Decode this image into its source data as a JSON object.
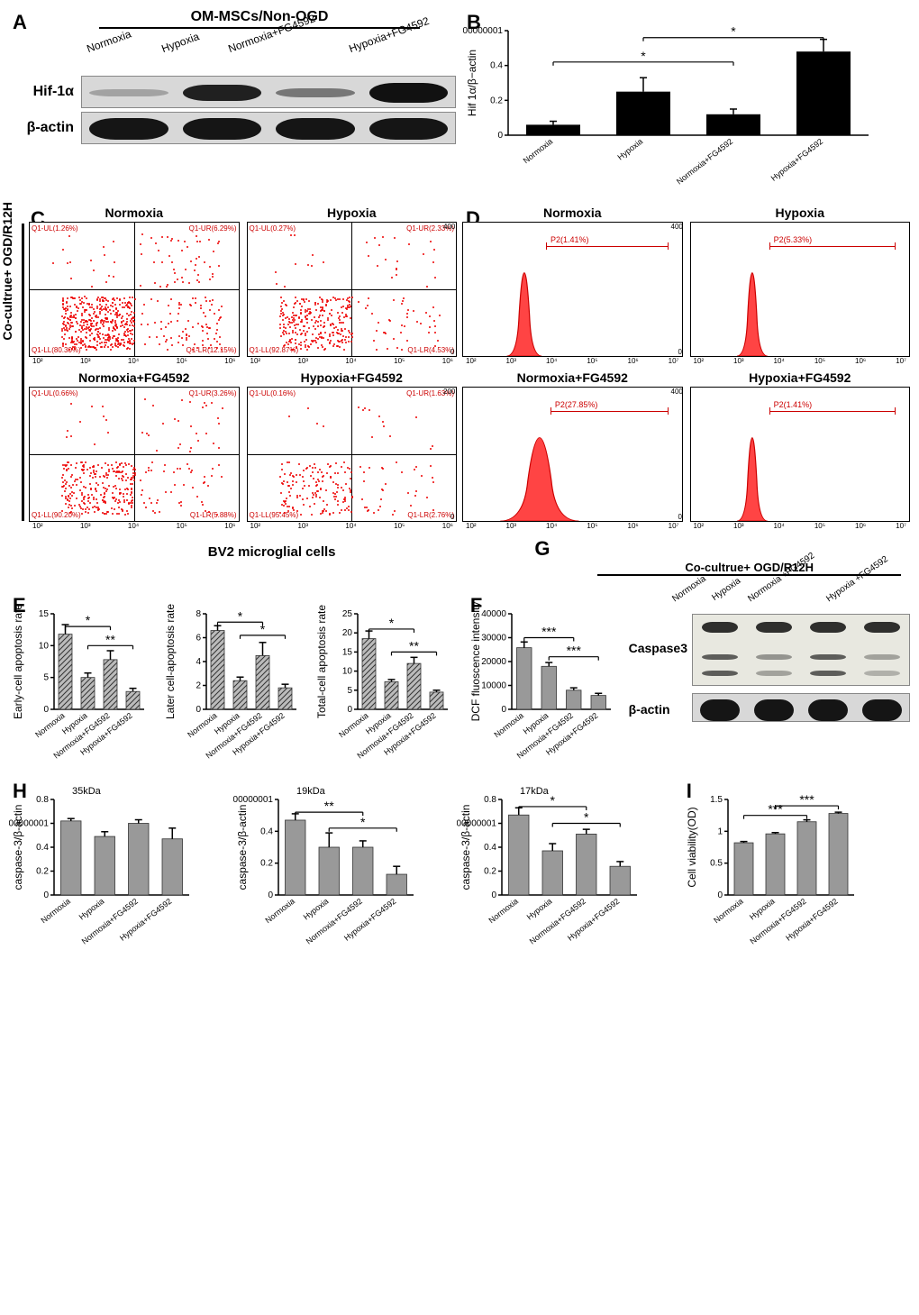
{
  "panelA": {
    "header": "OM-MSCs/Non-OGD",
    "conditions": [
      "Normoxia",
      "Hypoxia",
      "Normoxia+FG4592",
      "Hypoxia+FG4592"
    ],
    "rows": [
      "Hif-1α",
      "β-actin"
    ]
  },
  "panelB": {
    "ylabel": "Hif 1α/β−actin",
    "ylim": [
      0,
      0.6
    ],
    "ytick_step": 0.2,
    "categories": [
      "Normoxia",
      "Hypoxia",
      "Normoxia+FG4592",
      "Hypoxia+FG4592"
    ],
    "values": [
      0.06,
      0.25,
      0.12,
      0.48
    ],
    "errors": [
      0.02,
      0.08,
      0.03,
      0.07
    ],
    "bar_color": "#000000",
    "sig": [
      {
        "from": 0,
        "to": 2,
        "y": 0.42,
        "label": "*"
      },
      {
        "from": 1,
        "to": 3,
        "y": 0.56,
        "label": "*"
      }
    ]
  },
  "panelC": {
    "side_label": "Co-cultrue+ OGD/R12H",
    "plots": [
      {
        "title": "Normoxia",
        "UL": "Q1-UL(1.26%)",
        "UR": "Q1-UR(6.29%)",
        "LL": "Q1-LL(80.30%)",
        "LR": "Q1-LR(12.15%)"
      },
      {
        "title": "Hypoxia",
        "UL": "Q1-UL(0.27%)",
        "UR": "Q1-UR(2.33%)",
        "LL": "Q1-LL(92.87%)",
        "LR": "Q1-LR(4.53%)"
      },
      {
        "title": "Normoxia+FG4592",
        "UL": "Q1-UL(0.66%)",
        "UR": "Q1-UR(3.26%)",
        "LL": "Q1-LL(90.20%)",
        "LR": "Q1-LR(5.88%)"
      },
      {
        "title": "Hypoxia+FG4592",
        "UL": "Q1-UL(0.16%)",
        "UR": "Q1-UR(1.63%)",
        "LL": "Q1-LL(95.45%)",
        "LR": "Q1-LR(2.76%)"
      }
    ],
    "xticks": [
      "10²",
      "10³",
      "10⁴",
      "10⁵",
      "10⁶"
    ],
    "yticks": [
      "10²",
      "10³",
      "10⁴",
      "10⁵",
      "10⁶"
    ]
  },
  "panelD": {
    "plots": [
      {
        "title": "Normoxia",
        "p2": "P2(1.41%)",
        "peak_x": 0.28,
        "width": 0.08,
        "ymax": 400,
        "p2_start": 0.38
      },
      {
        "title": "Hypoxia",
        "p2": "P2(5.33%)",
        "peak_x": 0.28,
        "width": 0.07,
        "ymax": 400,
        "p2_start": 0.36
      },
      {
        "title": "Normoxia+FG4592",
        "p2": "P2(27.85%)",
        "peak_x": 0.35,
        "width": 0.18,
        "ymax": 200,
        "p2_start": 0.4
      },
      {
        "title": "Hypoxia+FG4592",
        "p2": "P2(1.41%)",
        "peak_x": 0.28,
        "width": 0.07,
        "ymax": 400,
        "p2_start": 0.36
      }
    ],
    "xticks": [
      "10²",
      "10³",
      "10⁴",
      "10⁵",
      "10⁶",
      "10⁷"
    ],
    "hist_color": "#ff4040"
  },
  "section_bv2": "BV2 microglial cells",
  "panelE": {
    "charts": [
      {
        "ylabel": "Early-cell apoptosis rate",
        "ylim": [
          0,
          15
        ],
        "ystep": 5,
        "values": [
          11.8,
          5.0,
          7.8,
          2.8
        ],
        "errors": [
          1.5,
          0.7,
          1.4,
          0.5
        ],
        "sig": [
          {
            "from": 0,
            "to": 2,
            "y": 13,
            "label": "*"
          },
          {
            "from": 1,
            "to": 3,
            "y": 10,
            "label": "**"
          }
        ]
      },
      {
        "ylabel": "Later cell-apoptosis rate",
        "ylim": [
          0,
          8
        ],
        "ystep": 2,
        "values": [
          6.6,
          2.4,
          4.5,
          1.8
        ],
        "errors": [
          0.4,
          0.3,
          1.1,
          0.3
        ],
        "sig": [
          {
            "from": 0,
            "to": 2,
            "y": 7.3,
            "label": "*"
          },
          {
            "from": 1,
            "to": 3,
            "y": 6.2,
            "label": "*"
          }
        ]
      },
      {
        "ylabel": "Total-cell apoptosis rate",
        "ylim": [
          0,
          25
        ],
        "ystep": 5,
        "values": [
          18.5,
          7.2,
          12.0,
          4.5
        ],
        "errors": [
          2.0,
          0.6,
          1.6,
          0.5
        ],
        "sig": [
          {
            "from": 0,
            "to": 2,
            "y": 21,
            "label": "*"
          },
          {
            "from": 1,
            "to": 3,
            "y": 15,
            "label": "**"
          }
        ]
      }
    ],
    "categories": [
      "Normoxia",
      "Hypoxia",
      "Normoxia+FG4592",
      "Hypoxia+FG4592"
    ],
    "bar_pattern": "hatch"
  },
  "panelF": {
    "ylabel": "DCF fluoscence intensity",
    "ylim": [
      0,
      40000
    ],
    "ystep": 10000,
    "categories": [
      "Normoxia",
      "Hypoxia",
      "Normoxia+FG4592",
      "Hypoxia+FG4592"
    ],
    "values": [
      25800,
      18000,
      8000,
      5800
    ],
    "errors": [
      2400,
      1600,
      1000,
      900
    ],
    "sig": [
      {
        "from": 0,
        "to": 2,
        "y": 30000,
        "label": "***"
      },
      {
        "from": 1,
        "to": 3,
        "y": 22000,
        "label": "***"
      }
    ],
    "bar_color": "#999999"
  },
  "panelG": {
    "header": "Co-cultrue+ OGD/R12H",
    "conditions": [
      "Normoxia",
      "Hypoxia",
      "Normoxia\n+FG4592",
      "Hypoxia\n+FG4592"
    ],
    "rows": [
      "Caspase3",
      "β-actin"
    ]
  },
  "panelH": {
    "charts": [
      {
        "title": "35kDa",
        "ylabel": "caspase-3/β-actin",
        "ylim": [
          0,
          0.8
        ],
        "ystep": 0.2,
        "values": [
          0.62,
          0.49,
          0.6,
          0.47
        ],
        "errors": [
          0.02,
          0.04,
          0.03,
          0.09
        ],
        "sig": []
      },
      {
        "title": "19kDa",
        "ylabel": "caspase-3/β-actin",
        "ylim": [
          0,
          0.6
        ],
        "ystep": 0.2,
        "values": [
          0.47,
          0.3,
          0.3,
          0.13
        ],
        "errors": [
          0.04,
          0.09,
          0.04,
          0.05
        ],
        "sig": [
          {
            "from": 0,
            "to": 2,
            "y": 0.52,
            "label": "**"
          },
          {
            "from": 1,
            "to": 3,
            "y": 0.42,
            "label": "*"
          }
        ]
      },
      {
        "title": "17kDa",
        "ylabel": "caspase-3/β-actin",
        "ylim": [
          0,
          0.8
        ],
        "ystep": 0.2,
        "values": [
          0.67,
          0.37,
          0.51,
          0.24
        ],
        "errors": [
          0.06,
          0.06,
          0.04,
          0.04
        ],
        "sig": [
          {
            "from": 0,
            "to": 2,
            "y": 0.74,
            "label": "*"
          },
          {
            "from": 1,
            "to": 3,
            "y": 0.6,
            "label": "*"
          }
        ]
      }
    ],
    "categories": [
      "Normoxia",
      "Hypoxia",
      "Normoxia+FG4592",
      "Hypoxia+FG4592"
    ],
    "bar_color": "#999999"
  },
  "panelI": {
    "ylabel": "Cell viability(OD)",
    "ylim": [
      0,
      1.5
    ],
    "ystep": 0.5,
    "categories": [
      "Normoxia",
      "Hypoxia",
      "Normoxia+FG4592",
      "Hypoxia+FG4592"
    ],
    "values": [
      0.82,
      0.96,
      1.15,
      1.28
    ],
    "errors": [
      0.02,
      0.02,
      0.03,
      0.02
    ],
    "sig": [
      {
        "from": 0,
        "to": 2,
        "y": 1.25,
        "label": "***"
      },
      {
        "from": 1,
        "to": 3,
        "y": 1.4,
        "label": "***"
      }
    ],
    "bar_color": "#999999"
  }
}
